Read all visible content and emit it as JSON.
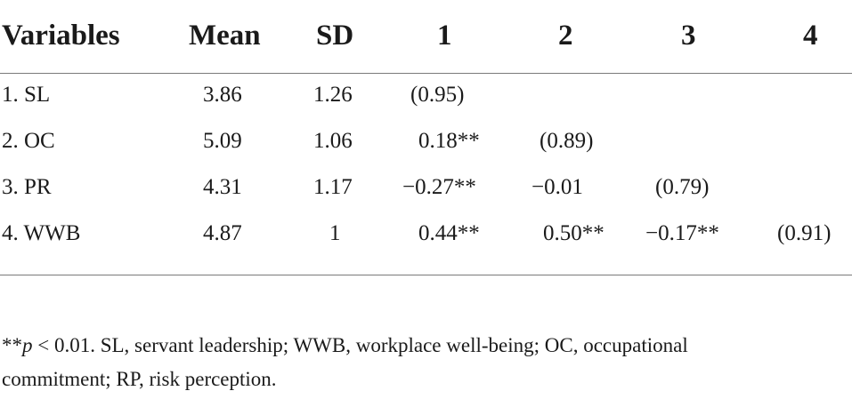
{
  "table": {
    "headers": {
      "variables": "Variables",
      "mean": "Mean",
      "sd": "SD",
      "c1": "1",
      "c2": "2",
      "c3": "3",
      "c4": "4"
    },
    "rows": [
      {
        "variable": "1. SL",
        "mean": "3.86",
        "sd": "1.26",
        "c1": "(0.95)",
        "c2": "",
        "c3": "",
        "c4": ""
      },
      {
        "variable": "2. OC",
        "mean": "5.09",
        "sd": "1.06",
        "c1": "0.18**",
        "c2": "(0.89)",
        "c3": "",
        "c4": ""
      },
      {
        "variable": "3. PR",
        "mean": "4.31",
        "sd": "1.17",
        "c1": "−0.27**",
        "c2": "−0.01",
        "c3": "(0.79)",
        "c4": ""
      },
      {
        "variable": "4. WWB",
        "mean": "4.87",
        "sd": "1",
        "c1": "0.44**",
        "c2": "0.50**",
        "c3": "−0.17**",
        "c4": "(0.91)"
      }
    ]
  },
  "note": {
    "stars": "**",
    "p": "p",
    "rest_line1": " < 0.01. SL, servant leadership; WWB, workplace well-being; OC, occupational",
    "line2": "commitment; RP, risk perception."
  }
}
